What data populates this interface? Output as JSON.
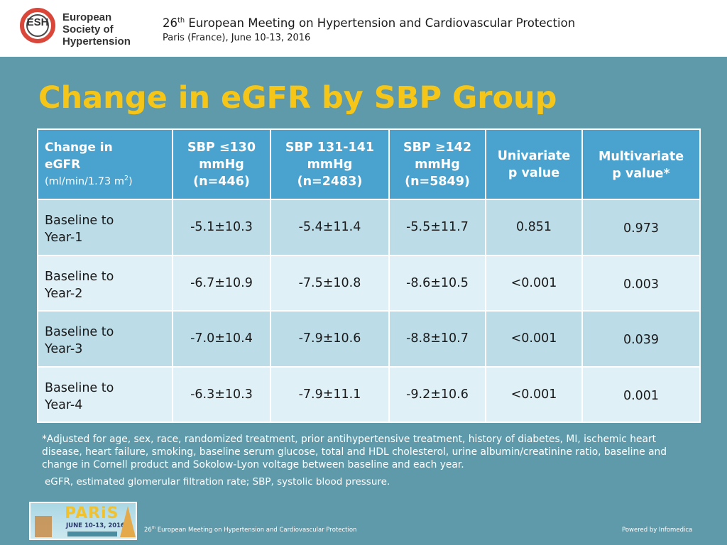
{
  "header": {
    "logo_abbr": "ESH",
    "logo_name_line1": "European",
    "logo_name_line2": "Society of",
    "logo_name_line3": "Hypertension",
    "meeting_number": "26",
    "meeting_suffix": "th",
    "meeting_title_rest": " European Meeting on Hypertension and Cardiovascular Protection",
    "meeting_location": "Paris (France), June 10-13, 2016"
  },
  "slide": {
    "title": "Change in eGFR by SBP Group"
  },
  "table": {
    "header": {
      "col0_line1": "Change in",
      "col0_line2": "eGFR",
      "col0_unit_prefix": "(ml/min/1.73 m",
      "col0_unit_sup": "2",
      "col0_unit_suffix": ")",
      "col1": [
        "SBP ≤130",
        "mmHg",
        "(n=446)"
      ],
      "col2": [
        "SBP 131-141",
        "mmHg",
        "(n=2483)"
      ],
      "col3": [
        "SBP ≥142",
        "mmHg",
        "(n=5849)"
      ],
      "col4": [
        "Univariate",
        "p value"
      ],
      "col5": [
        "Multivariate",
        "p value*"
      ]
    },
    "rows": [
      {
        "label_line1": "Baseline to",
        "label_line2": "Year-1",
        "sbp_le130": "-5.1±10.3",
        "sbp_131_141": "-5.4±11.4",
        "sbp_ge142": "-5.5±11.7",
        "univariate_p": "0.851",
        "multivariate_p": "0.973"
      },
      {
        "label_line1": "Baseline to",
        "label_line2": "Year-2",
        "sbp_le130": "-6.7±10.9",
        "sbp_131_141": "-7.5±10.8",
        "sbp_ge142": "-8.6±10.5",
        "univariate_p": "<0.001",
        "multivariate_p": "0.003"
      },
      {
        "label_line1": "Baseline to",
        "label_line2": "Year-3",
        "sbp_le130": "-7.0±10.4",
        "sbp_131_141": "-7.9±10.6",
        "sbp_ge142": "-8.8±10.7",
        "univariate_p": "<0.001",
        "multivariate_p": "0.039"
      },
      {
        "label_line1": "Baseline to",
        "label_line2": "Year-4",
        "sbp_le130": "-6.3±10.3",
        "sbp_131_141": "-7.9±11.1",
        "sbp_ge142": "-9.2±10.6",
        "univariate_p": "<0.001",
        "multivariate_p": "0.001"
      }
    ]
  },
  "footnotes": {
    "adjusted": "*Adjusted for age, sex, race, randomized treatment, prior antihypertensive treatment, history of diabetes, MI, ischemic heart disease, heart failure, smoking, baseline serum glucose, total and HDL cholesterol, urine albumin/creatinine ratio, baseline and change in Cornell product and Sokolow-Lyon voltage between baseline and each year.",
    "abbreviations": "eGFR, estimated glomerular filtration rate; SBP, systolic blood pressure."
  },
  "footer": {
    "paris_word": "PARiS",
    "paris_dates": "JUNE 10-13, 2016",
    "meeting_number": "26",
    "meeting_suffix": "th",
    "meeting_title_rest": " European Meeting on Hypertension and Cardiovascular Protection",
    "powered_by": "Powered by Infomedica"
  },
  "colors": {
    "background": "#5e9aaa",
    "title": "#f5c518",
    "table_header": "#4aa3cf",
    "row_dark": "#bcdce8",
    "row_light": "#dff0f6",
    "logo_red": "#d9473a"
  }
}
